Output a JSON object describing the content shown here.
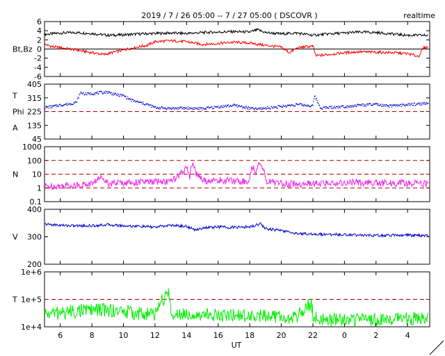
{
  "header": {
    "title": "2019 / 7 / 26   05:00 -- 7 / 27   05:00 ( DSCOVR )",
    "badge": "realtime"
  },
  "x_axis": {
    "label": "UT",
    "tick_labels": [
      "6",
      "8",
      "10",
      "12",
      "14",
      "16",
      "18",
      "20",
      "22",
      "0",
      "2",
      "4"
    ]
  },
  "colors": {
    "bt": "#000000",
    "bz": "#ff0000",
    "t_phi": "#0000cc",
    "density": "#ee22ee",
    "velocity": "#0000cc",
    "temperature": "#00ee00",
    "reference": "#aa0000"
  },
  "chart_data": [
    {
      "type": "line",
      "name": "magnetic-field",
      "ylabel": "Bt,Bz",
      "y_ticks": [
        "6",
        "4",
        "2",
        "0",
        "-2",
        "-4",
        "-6"
      ],
      "ylim": [
        -6,
        6
      ],
      "x_range_hours": [
        5,
        29.4
      ],
      "zero_line": 0,
      "series": [
        {
          "name": "Bt",
          "x": [
            5.0,
            6.0,
            7.0,
            8.0,
            9.0,
            10.0,
            11.0,
            12.0,
            13.0,
            14.0,
            15.0,
            16.0,
            17.0,
            18.0,
            18.5,
            19.0,
            20.0,
            21.0,
            22.0,
            23.0,
            24.0,
            25.0,
            26.0,
            27.0,
            28.0,
            29.3
          ],
          "values": [
            3.2,
            3.5,
            3.6,
            3.4,
            3.0,
            3.1,
            3.3,
            3.4,
            3.5,
            3.4,
            3.6,
            3.7,
            3.8,
            3.7,
            4.2,
            3.6,
            3.3,
            3.5,
            3.0,
            3.3,
            3.5,
            3.7,
            3.6,
            3.3,
            3.0,
            3.0
          ]
        },
        {
          "name": "Bz",
          "x": [
            5.0,
            5.5,
            6.0,
            7.0,
            8.0,
            8.8,
            9.5,
            10.5,
            11.5,
            12.0,
            13.0,
            14.0,
            15.0,
            16.0,
            17.0,
            18.0,
            19.0,
            20.0,
            20.5,
            21.0,
            21.5,
            22.0,
            22.2,
            23.0,
            24.0,
            25.0,
            26.0,
            27.0,
            28.0,
            28.7,
            29.0,
            29.3
          ],
          "values": [
            1.0,
            0.5,
            0.3,
            -0.2,
            -0.8,
            -1.2,
            -0.6,
            0.2,
            0.8,
            1.6,
            1.8,
            1.6,
            1.0,
            1.2,
            1.5,
            1.3,
            0.8,
            0.4,
            -0.8,
            0.2,
            0.5,
            0.6,
            -1.5,
            -1.2,
            -0.8,
            -0.6,
            -0.7,
            -0.8,
            -1.0,
            -1.6,
            0.2,
            0.5
          ]
        }
      ]
    },
    {
      "type": "scatter",
      "name": "temperature-phi",
      "ylabel": "T Phi A",
      "y_ticks": [
        "405",
        "315",
        "225",
        "135",
        "45"
      ],
      "ylim": [
        45,
        405
      ],
      "reference_lines": [
        225
      ],
      "series": [
        {
          "name": "Phi",
          "x": [
            5.0,
            5.5,
            6.0,
            6.5,
            7.0,
            7.3,
            7.6,
            8.0,
            8.5,
            9.0,
            9.5,
            10.0,
            10.5,
            11.0,
            11.5,
            12.0,
            13.0,
            14.0,
            15.0,
            16.0,
            17.0,
            17.5,
            18.0,
            18.5,
            19.0,
            20.0,
            21.0,
            22.0,
            22.1,
            22.5,
            23.0,
            24.0,
            25.0,
            26.0,
            26.5,
            27.0,
            28.0,
            29.0,
            29.3
          ],
          "values": [
            252,
            258,
            268,
            274,
            284,
            350,
            340,
            344,
            348,
            354,
            336,
            330,
            300,
            285,
            272,
            252,
            246,
            248,
            244,
            256,
            266,
            258,
            246,
            242,
            248,
            258,
            272,
            262,
            330,
            248,
            252,
            258,
            268,
            272,
            262,
            262,
            270,
            278,
            280
          ]
        }
      ]
    },
    {
      "type": "line",
      "name": "density",
      "ylabel": "N",
      "y_ticks": [
        "1000",
        "100",
        "10",
        "1",
        "0.1"
      ],
      "ylim": [
        0.1,
        1000
      ],
      "log_scale": true,
      "reference_lines": [
        1,
        10,
        100
      ],
      "series": [
        {
          "name": "N",
          "x": [
            5.0,
            6.0,
            7.0,
            8.0,
            8.7,
            9.0,
            10.0,
            11.0,
            12.0,
            13.0,
            13.5,
            14.0,
            14.2,
            14.4,
            14.6,
            15.0,
            16.0,
            17.0,
            18.0,
            18.2,
            18.4,
            18.6,
            19.0,
            20.0,
            21.0,
            22.0,
            23.0,
            24.0,
            25.0,
            26.0,
            27.0,
            28.0,
            29.3
          ],
          "values": [
            1.3,
            1.4,
            1.6,
            2.0,
            6.0,
            2.2,
            2.4,
            2.6,
            2.8,
            3.0,
            6.0,
            25.0,
            4.0,
            70.0,
            10.0,
            3.2,
            3.4,
            3.2,
            3.0,
            35.0,
            5.0,
            80.0,
            3.0,
            2.2,
            1.8,
            2.0,
            2.2,
            2.4,
            2.4,
            2.2,
            2.2,
            2.2,
            2.1
          ]
        }
      ]
    },
    {
      "type": "line",
      "name": "velocity",
      "ylabel": "V",
      "y_ticks": [
        "400",
        "300",
        "200"
      ],
      "ylim": [
        200,
        400
      ],
      "series": [
        {
          "name": "V",
          "x": [
            5.0,
            6.0,
            7.0,
            8.0,
            9.0,
            10.0,
            11.0,
            12.0,
            13.0,
            14.0,
            14.5,
            15.0,
            16.0,
            17.0,
            18.0,
            18.7,
            19.0,
            20.0,
            21.0,
            22.0,
            23.0,
            24.0,
            25.0,
            26.0,
            27.0,
            28.0,
            29.3
          ],
          "values": [
            346,
            342,
            340,
            340,
            344,
            340,
            338,
            335,
            342,
            338,
            325,
            332,
            336,
            334,
            336,
            348,
            330,
            322,
            312,
            310,
            308,
            308,
            306,
            304,
            306,
            306,
            304
          ]
        }
      ]
    },
    {
      "type": "line",
      "name": "temperature",
      "ylabel": "T",
      "y_ticks": [
        "1e+6",
        "1e+5",
        "1e+4"
      ],
      "ylim": [
        10000,
        1000000
      ],
      "log_scale": true,
      "reference_lines": [
        100000
      ],
      "series": [
        {
          "name": "T",
          "x": [
            5.0,
            6.0,
            7.0,
            8.0,
            9.0,
            10.0,
            11.0,
            12.0,
            12.9,
            13.0,
            14.0,
            15.0,
            16.0,
            17.0,
            18.0,
            19.0,
            20.0,
            21.0,
            21.9,
            22.0,
            23.0,
            24.0,
            25.0,
            26.0,
            27.0,
            28.0,
            29.3
          ],
          "values": [
            30000,
            32000,
            38000,
            42000,
            40000,
            36000,
            30000,
            28000,
            150000,
            30000,
            32000,
            28000,
            28000,
            26000,
            25000,
            24000,
            23000,
            20000,
            70000,
            22000,
            18000,
            17000,
            18000,
            17000,
            19000,
            20000,
            22000
          ]
        }
      ]
    }
  ]
}
